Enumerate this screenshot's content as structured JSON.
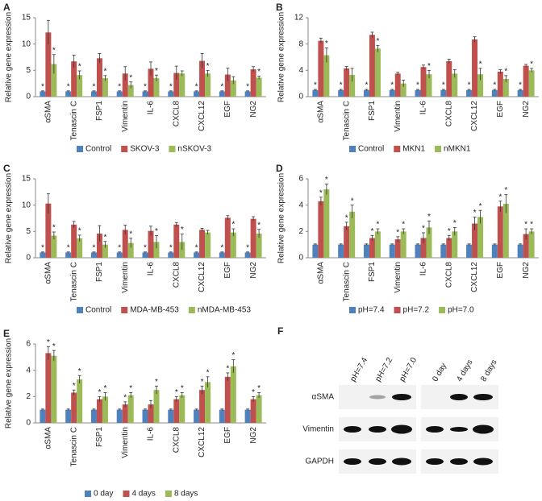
{
  "chart_data": [
    {
      "type": "bar",
      "panel": "A",
      "ylabel": "Relative gene expression",
      "categories": [
        "αSMA",
        "Tenascin C",
        "FSP1",
        "Vimentin",
        "IL-6",
        "CXCL8",
        "CXCL12",
        "EGF",
        "NG2"
      ],
      "series": [
        {
          "name": "Control",
          "color": "#4f81bd",
          "values": [
            1,
            1,
            1,
            1,
            1,
            1,
            1,
            1,
            1
          ],
          "errors": [
            0.1,
            0.1,
            0.1,
            0.1,
            0.1,
            0.1,
            0.1,
            0.1,
            0.1
          ],
          "significance": [
            "*",
            "*",
            "*",
            "*",
            "*",
            "*",
            "*",
            "*",
            "*"
          ]
        },
        {
          "name": "SKOV-3",
          "color": "#c0504d",
          "values": [
            12.2,
            6.7,
            7.3,
            4.4,
            5.3,
            4.5,
            6.8,
            4.2,
            5.2
          ],
          "errors": [
            2.3,
            1.2,
            0.9,
            1.3,
            1.3,
            1.3,
            1.4,
            1.2,
            0.5
          ],
          "significance": [
            null,
            null,
            null,
            null,
            null,
            null,
            null,
            null,
            null
          ]
        },
        {
          "name": "nSKOV-3",
          "color": "#9bbb59",
          "values": [
            6.2,
            4.1,
            3.5,
            2.2,
            3.5,
            4.4,
            4.4,
            3.1,
            3.6
          ],
          "errors": [
            1.8,
            0.8,
            0.5,
            0.6,
            0.6,
            0.5,
            0.6,
            0.7,
            0.3
          ],
          "significance": [
            "*",
            "*",
            "*",
            "*",
            "*",
            null,
            "*",
            null,
            "*"
          ]
        }
      ],
      "ylim": [
        0,
        15
      ],
      "yticks": [
        0,
        5,
        10,
        15
      ],
      "grid": false,
      "legend": "bottom"
    },
    {
      "type": "bar",
      "panel": "B",
      "ylabel": "Relative gene expression",
      "categories": [
        "αSMA",
        "Tenascin C",
        "FSP1",
        "Vimentin",
        "IL-6",
        "CXCL8",
        "CXCL12",
        "EGF",
        "NG2"
      ],
      "series": [
        {
          "name": "Control",
          "color": "#4f81bd",
          "values": [
            1,
            1,
            1,
            1,
            1,
            1,
            1,
            1,
            1
          ],
          "errors": [
            0.1,
            0.1,
            0.1,
            0.1,
            0.1,
            0.1,
            0.1,
            0.1,
            0.1
          ],
          "significance": [
            "*",
            "*",
            "*",
            "*",
            "*",
            "*",
            "*",
            "*",
            "*"
          ]
        },
        {
          "name": "MKN1",
          "color": "#c0504d",
          "values": [
            8.5,
            4.3,
            9.4,
            3.5,
            4.5,
            5.4,
            8.7,
            3.8,
            4.7
          ],
          "errors": [
            0.4,
            0.3,
            0.4,
            0.2,
            0.3,
            0.3,
            0.4,
            0.3,
            0.2
          ],
          "significance": [
            null,
            null,
            null,
            null,
            null,
            null,
            null,
            null,
            null
          ]
        },
        {
          "name": "nMKN1",
          "color": "#9bbb59",
          "values": [
            6.3,
            3.3,
            7.3,
            2.0,
            3.4,
            3.5,
            3.4,
            2.7,
            4.0
          ],
          "errors": [
            1.1,
            1.0,
            0.5,
            0.5,
            0.6,
            0.6,
            0.9,
            0.5,
            0.3
          ],
          "significance": [
            "*",
            null,
            "*",
            null,
            "*",
            null,
            "*",
            "*",
            "*"
          ]
        }
      ],
      "ylim": [
        0,
        12
      ],
      "yticks": [
        0,
        4,
        8,
        12
      ],
      "grid": false,
      "legend": "bottom"
    },
    {
      "type": "bar",
      "panel": "C",
      "ylabel": "Relative gene expression",
      "categories": [
        "αSMA",
        "Tenascin C",
        "FSP1",
        "Vimentin",
        "IL-6",
        "CXCL8",
        "CXCL12",
        "EGF",
        "NG2"
      ],
      "series": [
        {
          "name": "Control",
          "color": "#4f81bd",
          "values": [
            1,
            1,
            1,
            1,
            1,
            1,
            1,
            1,
            1
          ],
          "errors": [
            0.1,
            0.1,
            0.1,
            0.1,
            0.1,
            0.1,
            0.1,
            0.1,
            0.1
          ],
          "significance": [
            "*",
            "*",
            "*",
            "*",
            "*",
            "*",
            "*",
            "*",
            "*"
          ]
        },
        {
          "name": "MDA-MB-453",
          "color": "#c0504d",
          "values": [
            10.3,
            6.3,
            4.6,
            5.3,
            5.1,
            6.3,
            5.3,
            7.6,
            7.4
          ],
          "errors": [
            1.9,
            0.6,
            1.5,
            0.9,
            0.9,
            0.4,
            0.3,
            0.4,
            0.4
          ],
          "significance": [
            null,
            null,
            null,
            null,
            null,
            null,
            null,
            null,
            null
          ]
        },
        {
          "name": "nMDA-MB-453",
          "color": "#9bbb59",
          "values": [
            4.2,
            3.7,
            2.5,
            2.8,
            3.0,
            3.0,
            4.8,
            4.8,
            4.6
          ],
          "errors": [
            0.7,
            0.6,
            0.6,
            0.9,
            1.2,
            1.5,
            0.4,
            0.7,
            0.8
          ],
          "significance": [
            "*",
            "*",
            "*",
            "*",
            "*",
            "*",
            null,
            "*",
            "*"
          ]
        }
      ],
      "ylim": [
        0,
        15
      ],
      "yticks": [
        0,
        5,
        10,
        15
      ],
      "grid": false,
      "legend": "bottom"
    },
    {
      "type": "bar",
      "panel": "D",
      "ylabel": "Relative gene expression",
      "categories": [
        "αSMA",
        "Tenascin C",
        "FSP1",
        "Vimentin",
        "IL-6",
        "CXCL8",
        "CXCL12",
        "EGF",
        "NG2"
      ],
      "series": [
        {
          "name": "pH=7.4",
          "color": "#4f81bd",
          "values": [
            1,
            1,
            1,
            1,
            1,
            1,
            1,
            1,
            1
          ],
          "errors": [
            0.05,
            0.05,
            0.05,
            0.05,
            0.05,
            0.05,
            0.05,
            0.05,
            0.05
          ],
          "significance": [
            null,
            null,
            null,
            null,
            null,
            null,
            null,
            null,
            null
          ]
        },
        {
          "name": "pH=7.2",
          "color": "#c0504d",
          "values": [
            4.3,
            2.4,
            1.5,
            1.4,
            1.5,
            1.5,
            2.6,
            3.9,
            1.8
          ],
          "errors": [
            0.3,
            0.3,
            0.2,
            0.2,
            0.4,
            0.2,
            0.5,
            0.4,
            0.4
          ],
          "significance": [
            "*",
            "*",
            "*",
            "*",
            "*",
            "*",
            "*",
            "*",
            "*"
          ]
        },
        {
          "name": "pH=7.0",
          "color": "#9bbb59",
          "values": [
            5.2,
            3.5,
            2.0,
            2.0,
            2.3,
            2.0,
            3.1,
            4.1,
            2.0
          ],
          "errors": [
            0.4,
            0.5,
            0.2,
            0.2,
            0.5,
            0.3,
            0.5,
            0.7,
            0.2
          ],
          "significance": [
            "*",
            "*",
            "*",
            "*",
            "*",
            "*",
            "*",
            "*",
            "*"
          ]
        }
      ],
      "ylim": [
        0,
        6
      ],
      "yticks": [
        0,
        2,
        4,
        6
      ],
      "grid": false,
      "legend": "bottom"
    },
    {
      "type": "bar",
      "panel": "E",
      "ylabel": "Relative gene expression",
      "categories": [
        "αSMA",
        "Tenascin C",
        "FSP1",
        "Vimentin",
        "IL-6",
        "CXCL8",
        "CXCL12",
        "EGF",
        "NG2"
      ],
      "series": [
        {
          "name": "0 day",
          "color": "#4f81bd",
          "values": [
            1,
            1,
            1,
            1,
            1,
            1,
            1,
            1,
            1
          ],
          "errors": [
            0.05,
            0.05,
            0.05,
            0.05,
            0.05,
            0.05,
            0.05,
            0.05,
            0.05
          ],
          "significance": [
            null,
            null,
            null,
            null,
            null,
            null,
            null,
            null,
            null
          ]
        },
        {
          "name": "4 days",
          "color": "#c0504d",
          "values": [
            5.3,
            2.3,
            1.8,
            1.4,
            1.4,
            1.8,
            2.5,
            3.5,
            1.8
          ],
          "errors": [
            0.5,
            0.2,
            0.2,
            0.2,
            0.3,
            0.2,
            0.3,
            0.3,
            0.2
          ],
          "significance": [
            "*",
            "*",
            "*",
            "*",
            null,
            "*",
            "*",
            "*",
            "*"
          ]
        },
        {
          "name": "8 days",
          "color": "#9bbb59",
          "values": [
            5.1,
            3.3,
            2.0,
            2.1,
            2.5,
            2.1,
            3.1,
            4.3,
            2.1
          ],
          "errors": [
            0.4,
            0.3,
            0.3,
            0.2,
            0.3,
            0.2,
            0.4,
            0.5,
            0.2
          ],
          "significance": [
            "*",
            "*",
            "*",
            "*",
            "*",
            "*",
            "*",
            "*",
            "*"
          ]
        }
      ],
      "ylim": [
        0,
        6
      ],
      "yticks": [
        0,
        2,
        4,
        6
      ],
      "grid": false,
      "legend": "bottom"
    }
  ],
  "blot": {
    "panel": "F",
    "lanes": [
      "pH=7.4",
      "pH=7.2",
      "pH=7.0",
      "0 day",
      "4 days",
      "8 days"
    ],
    "rows": [
      "αSMA",
      "Vimentin",
      "GAPDH"
    ]
  }
}
